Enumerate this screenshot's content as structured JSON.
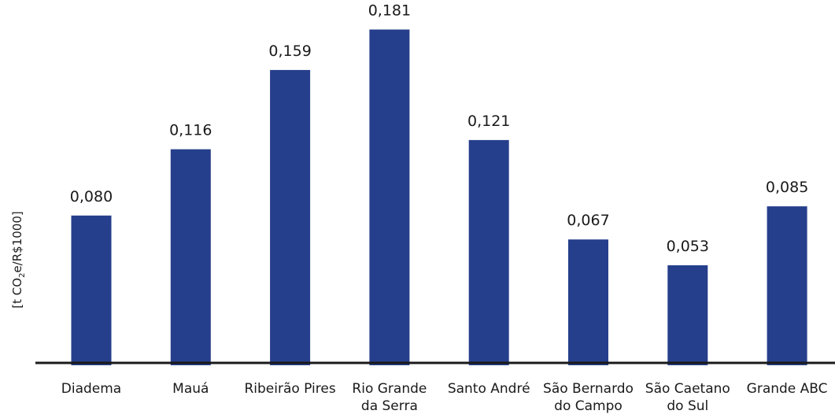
{
  "chart_data": {
    "type": "bar",
    "categories": [
      [
        "Diadema"
      ],
      [
        "Mauá"
      ],
      [
        "Ribeirão Pires"
      ],
      [
        "Rio Grande",
        "da Serra"
      ],
      [
        "Santo André"
      ],
      [
        "São Bernardo",
        "do Campo"
      ],
      [
        "São Caetano",
        "do Sul"
      ],
      [
        "Grande ABC"
      ]
    ],
    "values": [
      0.08,
      0.116,
      0.159,
      0.181,
      0.121,
      0.067,
      0.053,
      0.085
    ],
    "value_labels": [
      "0,080",
      "0,116",
      "0,159",
      "0,181",
      "0,121",
      "0,067",
      "0,053",
      "0,085"
    ],
    "ylabel": {
      "prefix": "[t CO",
      "subscript": "2",
      "suffix": "e/R$1000]"
    },
    "ylim": [
      0,
      0.2
    ],
    "bar_color": "#263f8c",
    "axis_color": "#1a1a1a",
    "grid": false,
    "title": "",
    "xlabel": ""
  }
}
